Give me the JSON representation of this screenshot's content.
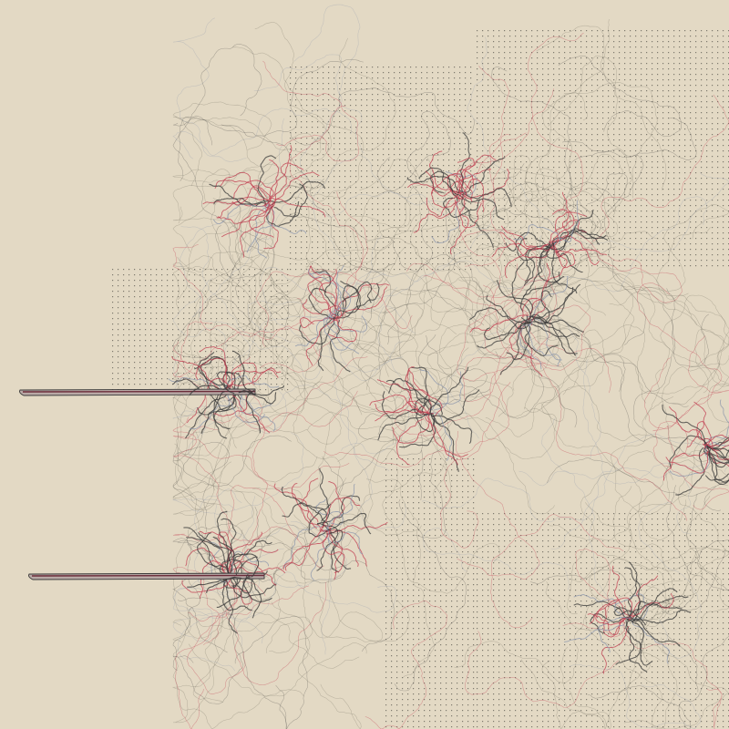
{
  "artwork": {
    "background_color": "#e3d9c4",
    "palette": {
      "charcoal": "#3a3a3a",
      "crimson": "#c0394e",
      "slate": "#8a94ab",
      "olive": "#6e6b5c",
      "dot": "#2c2a28"
    },
    "clusters": [
      {
        "name": "cluster-a"
      },
      {
        "name": "cluster-b"
      },
      {
        "name": "cluster-c"
      },
      {
        "name": "cluster-d"
      },
      {
        "name": "cluster-e"
      },
      {
        "name": "cluster-f"
      },
      {
        "name": "cluster-g"
      },
      {
        "name": "cluster-h"
      },
      {
        "name": "cluster-i"
      },
      {
        "name": "cluster-j"
      },
      {
        "name": "cluster-k"
      }
    ],
    "dot_regions": [
      {
        "name": "dot-region-top-right"
      },
      {
        "name": "dot-region-top-center"
      },
      {
        "name": "dot-region-left"
      },
      {
        "name": "dot-region-bottom-center"
      },
      {
        "name": "dot-region-bottom-right"
      }
    ],
    "streaks": [
      {
        "name": "streak-upper"
      },
      {
        "name": "streak-lower"
      }
    ]
  }
}
